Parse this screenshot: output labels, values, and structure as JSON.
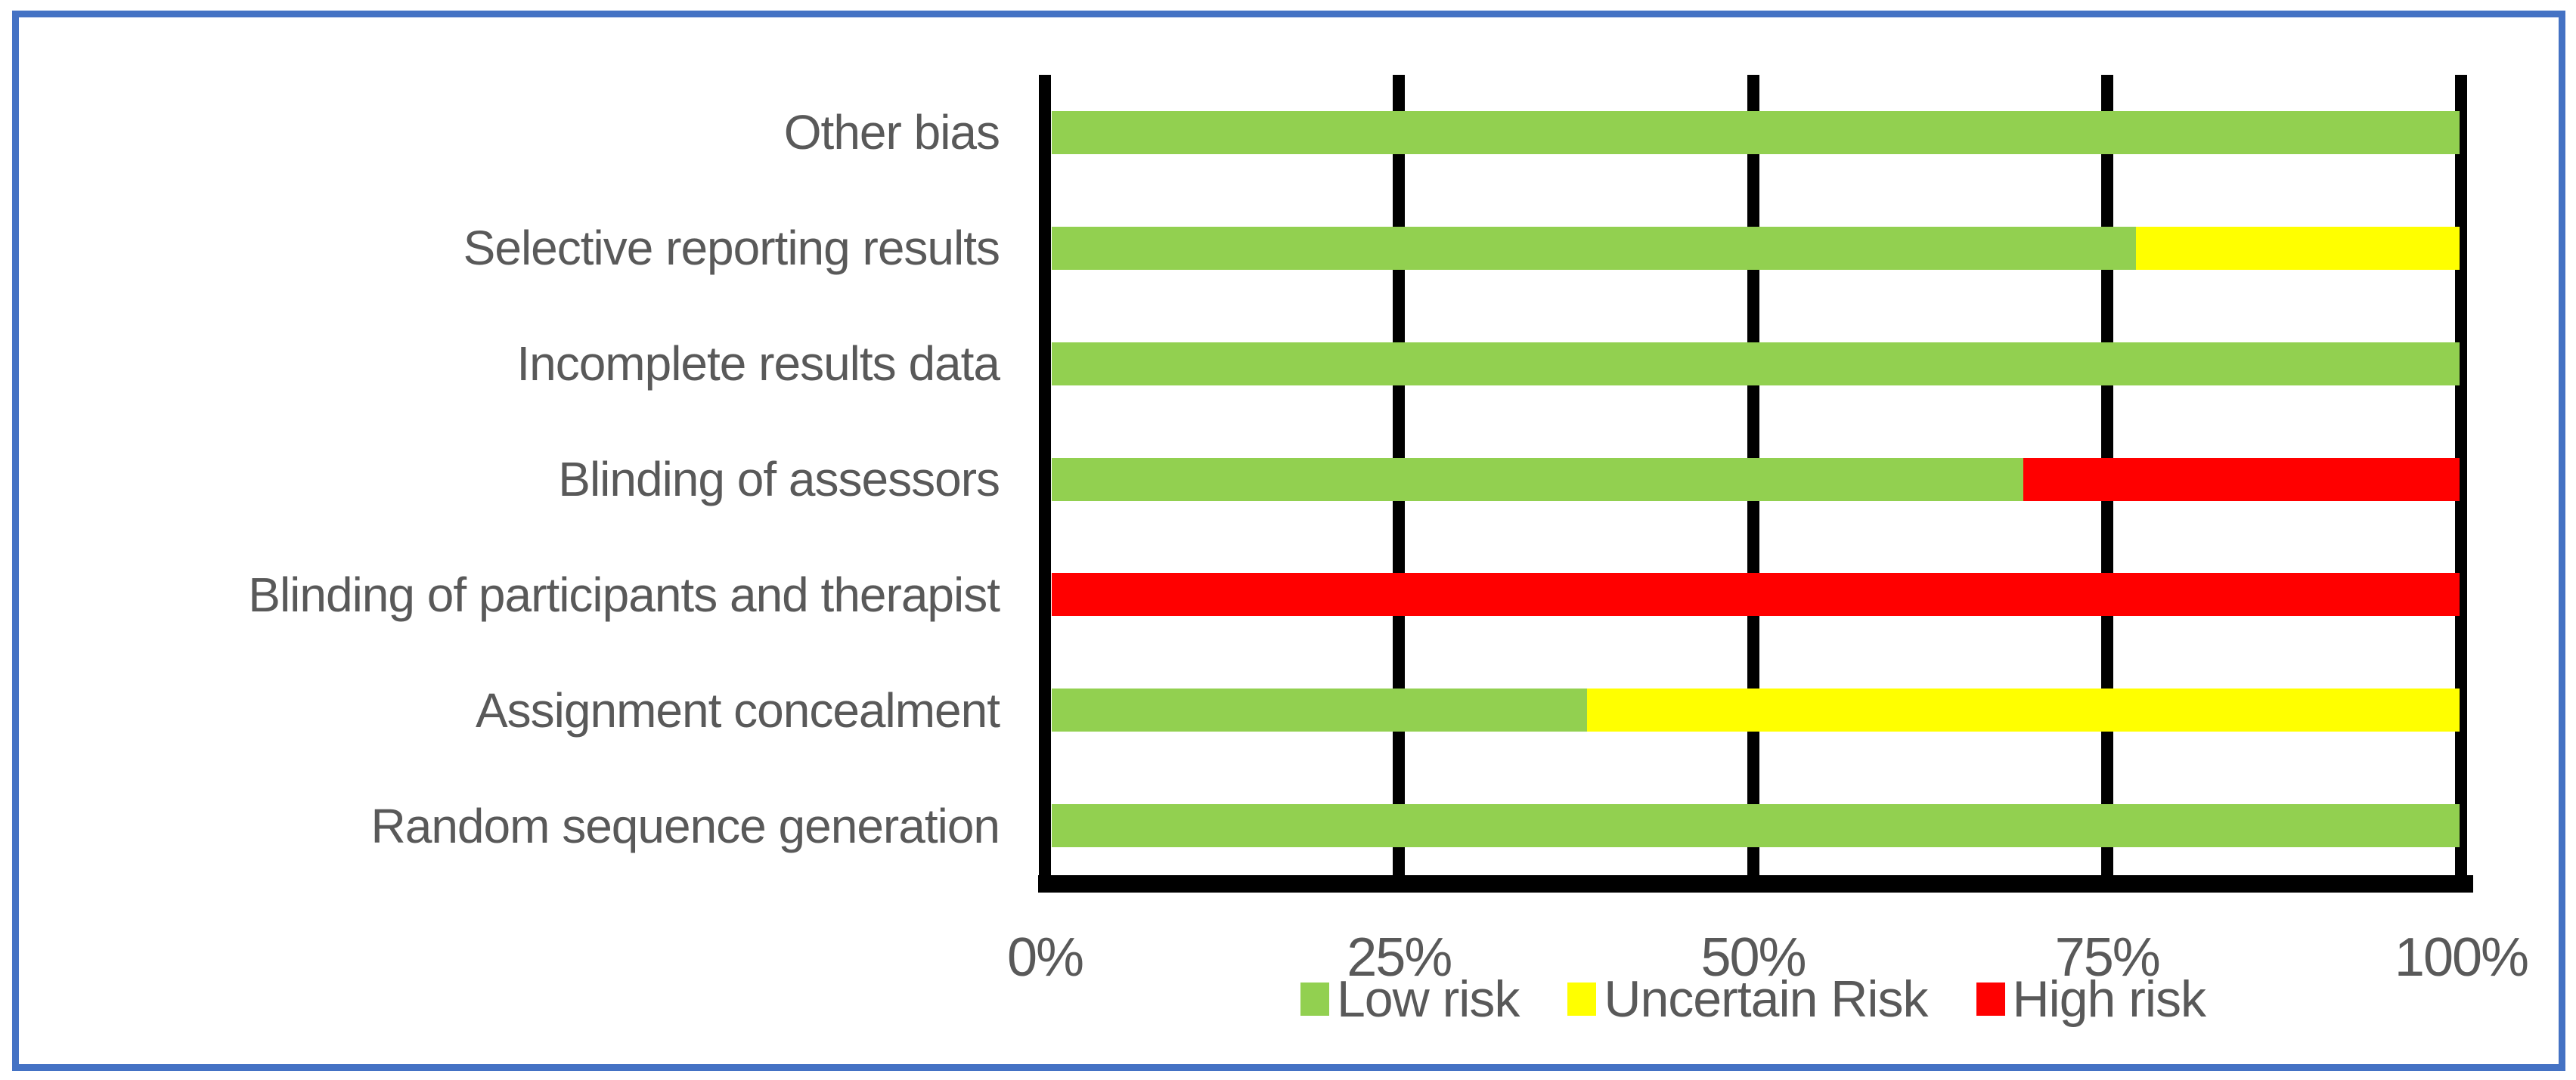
{
  "page": {
    "background_color": "#FFFFFF",
    "frame_color": "#4472C4",
    "text_color": "#595959",
    "gridline_color": "#000000"
  },
  "chart_data": {
    "type": "bar",
    "orientation": "horizontal",
    "stacked": true,
    "title": "",
    "xlabel": "",
    "ylabel": "",
    "xlim": [
      0,
      100
    ],
    "x_ticks": [
      "0%",
      "25%",
      "50%",
      "75%",
      "100%"
    ],
    "x_tick_values": [
      0,
      25,
      50,
      75,
      100
    ],
    "gridlines": "vertical",
    "legend_position": "bottom",
    "categories": [
      "Other bias",
      "Selective reporting results",
      "Incomplete results data",
      "Blinding of assessors",
      "Blinding of participants and therapist",
      "Assignment concealment",
      "Random sequence generation"
    ],
    "series": [
      {
        "name": "Low risk",
        "color": "#92D050",
        "values": [
          100,
          77,
          100,
          69,
          0,
          38,
          100
        ]
      },
      {
        "name": "Uncertain Risk",
        "color": "#FFFF00",
        "values": [
          0,
          23,
          0,
          0,
          0,
          62,
          0
        ]
      },
      {
        "name": "High risk",
        "color": "#FF0000",
        "values": [
          0,
          0,
          0,
          31,
          100,
          0,
          0
        ]
      }
    ]
  }
}
